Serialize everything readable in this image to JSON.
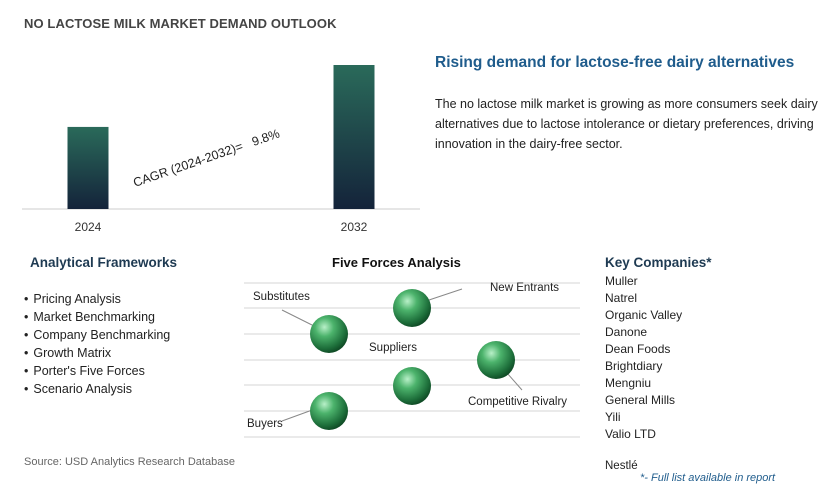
{
  "page": {
    "title": "NO LACTOSE MILK MARKET DEMAND OUTLOOK"
  },
  "chart_data": {
    "type": "bar",
    "categories": [
      "2024",
      "2032"
    ],
    "values": [
      0.57,
      1.0
    ],
    "annotation": "CAGR (2024-2032)=   9.8%",
    "colors": {
      "bar_top": "#2a6a5a",
      "bar_bottom": "#14233a"
    }
  },
  "summary": {
    "headline": "Rising demand for lactose-free dairy alternatives",
    "description": "The no lactose milk market is growing as more consumers seek dairy alternatives due to lactose intolerance or dietary preferences, driving innovation in the dairy-free sector."
  },
  "frameworks": {
    "title": "Analytical Frameworks",
    "items": [
      "Pricing Analysis",
      "Market Benchmarking",
      "Company Benchmarking",
      "Growth Matrix",
      "Porter's Five Forces",
      "Scenario Analysis"
    ]
  },
  "five_forces": {
    "title": "Five Forces Analysis",
    "labels": {
      "substitutes": "Substitutes",
      "new_entrants": "New Entrants",
      "suppliers": "Suppliers",
      "competitive_rivalry": "Competitive Rivalry",
      "buyers": "Buyers"
    }
  },
  "companies": {
    "title": "Key Companies*",
    "items": [
      "Muller",
      "Natrel",
      "Organic Valley",
      "Danone",
      "Dean Foods",
      "Brightdiary",
      "Mengniu",
      "General Mills",
      "Yili",
      "Valio LTD"
    ],
    "clipped_item": "Nestlé",
    "footnote": "*- Full list available in report"
  },
  "source": "Source: USD Analytics Research Database"
}
